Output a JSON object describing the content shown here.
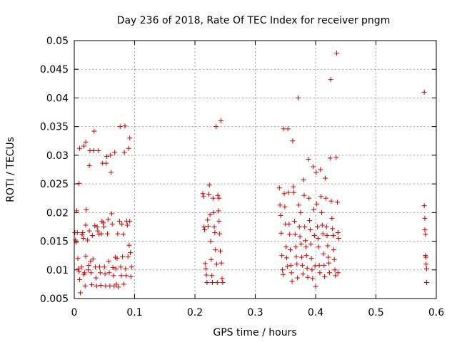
{
  "chart_data": {
    "type": "scatter",
    "title": "Day 236 of 2018, Rate Of TEC Index for receiver pngm",
    "xlabel": "GPS time / hours",
    "ylabel": "ROTI / TECUs",
    "xlim": [
      0,
      0.6
    ],
    "ylim": [
      0.005,
      0.05
    ],
    "xticks": [
      "0",
      "0.1",
      "0.2",
      "0.3",
      "0.4",
      "0.5",
      "0.6"
    ],
    "yticks": [
      "0.005",
      "0.01",
      "0.015",
      "0.02",
      "0.025",
      "0.03",
      "0.035",
      "0.04",
      "0.045",
      "0.05"
    ],
    "grid": true,
    "marker": "+",
    "color": "#cc0000",
    "series": [
      {
        "name": "ROTI",
        "points": [
          [
            0.001,
            0.0165
          ],
          [
            0.002,
            0.0152
          ],
          [
            0.003,
            0.0148
          ],
          [
            0.004,
            0.0203
          ],
          [
            0.005,
            0.0165
          ],
          [
            0.006,
            0.012
          ],
          [
            0.007,
            0.0102
          ],
          [
            0.008,
            0.0097
          ],
          [
            0.009,
            0.0083
          ],
          [
            0.01,
            0.006
          ],
          [
            0.009,
            0.0312
          ],
          [
            0.008,
            0.0251
          ],
          [
            0.012,
            0.0105
          ],
          [
            0.013,
            0.0161
          ],
          [
            0.014,
            0.0165
          ],
          [
            0.015,
            0.0155
          ],
          [
            0.016,
            0.0092
          ],
          [
            0.017,
            0.0095
          ],
          [
            0.018,
            0.0072
          ],
          [
            0.019,
            0.0124
          ],
          [
            0.019,
            0.0178
          ],
          [
            0.02,
            0.0205
          ],
          [
            0.016,
            0.0316
          ],
          [
            0.019,
            0.0323
          ],
          [
            0.022,
            0.0152
          ],
          [
            0.023,
            0.01
          ],
          [
            0.024,
            0.0108
          ],
          [
            0.025,
            0.0168
          ],
          [
            0.025,
            0.0282
          ],
          [
            0.026,
            0.0308
          ],
          [
            0.027,
            0.0115
          ],
          [
            0.028,
            0.0095
          ],
          [
            0.029,
            0.0074
          ],
          [
            0.03,
            0.016
          ],
          [
            0.031,
            0.0119
          ],
          [
            0.032,
            0.0308
          ],
          [
            0.033,
            0.0342
          ],
          [
            0.034,
            0.0177
          ],
          [
            0.035,
            0.0105
          ],
          [
            0.036,
            0.0086
          ],
          [
            0.037,
            0.0072
          ],
          [
            0.038,
            0.0175
          ],
          [
            0.039,
            0.0168
          ],
          [
            0.04,
            0.0308
          ],
          [
            0.041,
            0.0162
          ],
          [
            0.042,
            0.0105
          ],
          [
            0.043,
            0.0095
          ],
          [
            0.044,
            0.0073
          ],
          [
            0.045,
            0.0163
          ],
          [
            0.046,
            0.0185
          ],
          [
            0.047,
            0.0286
          ],
          [
            0.048,
            0.0182
          ],
          [
            0.049,
            0.0175
          ],
          [
            0.05,
            0.0105
          ],
          [
            0.051,
            0.0093
          ],
          [
            0.052,
            0.0072
          ],
          [
            0.053,
            0.0286
          ],
          [
            0.054,
            0.0298
          ],
          [
            0.055,
            0.0163
          ],
          [
            0.056,
            0.0188
          ],
          [
            0.057,
            0.0115
          ],
          [
            0.058,
            0.0095
          ],
          [
            0.059,
            0.0072
          ],
          [
            0.06,
            0.03
          ],
          [
            0.061,
            0.027
          ],
          [
            0.062,
            0.0198
          ],
          [
            0.063,
            0.018
          ],
          [
            0.064,
            0.0104
          ],
          [
            0.065,
            0.009
          ],
          [
            0.066,
            0.0072
          ],
          [
            0.067,
            0.0305
          ],
          [
            0.068,
            0.0122
          ],
          [
            0.069,
            0.0102
          ],
          [
            0.07,
            0.0075
          ],
          [
            0.071,
            0.012
          ],
          [
            0.072,
            0.0163
          ],
          [
            0.073,
            0.007
          ],
          [
            0.075,
            0.0185
          ],
          [
            0.076,
            0.035
          ],
          [
            0.077,
            0.0105
          ],
          [
            0.078,
            0.009
          ],
          [
            0.079,
            0.018
          ],
          [
            0.08,
            0.0123
          ],
          [
            0.081,
            0.0162
          ],
          [
            0.082,
            0.0075
          ],
          [
            0.083,
            0.0305
          ],
          [
            0.084,
            0.0351
          ],
          [
            0.085,
            0.0102
          ],
          [
            0.086,
            0.009
          ],
          [
            0.087,
            0.0185
          ],
          [
            0.088,
            0.0178
          ],
          [
            0.089,
            0.0123
          ],
          [
            0.09,
            0.0312
          ],
          [
            0.091,
            0.0143
          ],
          [
            0.092,
            0.033
          ],
          [
            0.093,
            0.013
          ],
          [
            0.094,
            0.0088
          ],
          [
            0.095,
            0.0105
          ],
          [
            0.092,
            0.0185
          ],
          [
            0.213,
            0.0233
          ],
          [
            0.214,
            0.0228
          ],
          [
            0.215,
            0.0175
          ],
          [
            0.216,
            0.017
          ],
          [
            0.217,
            0.0111
          ],
          [
            0.218,
            0.0102
          ],
          [
            0.219,
            0.0091
          ],
          [
            0.22,
            0.0078
          ],
          [
            0.221,
            0.0187
          ],
          [
            0.222,
            0.0176
          ],
          [
            0.223,
            0.0232
          ],
          [
            0.224,
            0.0248
          ],
          [
            0.225,
            0.0196
          ],
          [
            0.226,
            0.015
          ],
          [
            0.227,
            0.0118
          ],
          [
            0.228,
            0.009
          ],
          [
            0.229,
            0.0078
          ],
          [
            0.23,
            0.0225
          ],
          [
            0.231,
            0.02
          ],
          [
            0.232,
            0.0175
          ],
          [
            0.233,
            0.0165
          ],
          [
            0.234,
            0.0135
          ],
          [
            0.235,
            0.035
          ],
          [
            0.236,
            0.011
          ],
          [
            0.237,
            0.0078
          ],
          [
            0.238,
            0.023
          ],
          [
            0.239,
            0.0203
          ],
          [
            0.24,
            0.0185
          ],
          [
            0.241,
            0.0163
          ],
          [
            0.242,
            0.0133
          ],
          [
            0.243,
            0.036
          ],
          [
            0.244,
            0.0112
          ],
          [
            0.245,
            0.0085
          ],
          [
            0.246,
            0.0078
          ],
          [
            0.24,
            0.0225
          ],
          [
            0.34,
            0.0243
          ],
          [
            0.341,
            0.0213
          ],
          [
            0.342,
            0.0195
          ],
          [
            0.343,
            0.0164
          ],
          [
            0.344,
            0.0125
          ],
          [
            0.345,
            0.01
          ],
          [
            0.346,
            0.0092
          ],
          [
            0.347,
            0.0346
          ],
          [
            0.348,
            0.0233
          ],
          [
            0.349,
            0.021
          ],
          [
            0.35,
            0.018
          ],
          [
            0.351,
            0.014
          ],
          [
            0.352,
            0.0121
          ],
          [
            0.353,
            0.0106
          ],
          [
            0.354,
            0.0346
          ],
          [
            0.355,
            0.0235
          ],
          [
            0.356,
            0.018
          ],
          [
            0.357,
            0.0162
          ],
          [
            0.358,
            0.0135
          ],
          [
            0.359,
            0.0108
          ],
          [
            0.36,
            0.0095
          ],
          [
            0.361,
            0.008
          ],
          [
            0.362,
            0.0325
          ],
          [
            0.363,
            0.0245
          ],
          [
            0.364,
            0.0235
          ],
          [
            0.365,
            0.0185
          ],
          [
            0.366,
            0.0162
          ],
          [
            0.367,
            0.014
          ],
          [
            0.368,
            0.0123
          ],
          [
            0.369,
            0.011
          ],
          [
            0.37,
            0.0086
          ],
          [
            0.371,
            0.04
          ],
          [
            0.372,
            0.0213
          ],
          [
            0.373,
            0.0175
          ],
          [
            0.374,
            0.0158
          ],
          [
            0.375,
            0.02
          ],
          [
            0.376,
            0.0145
          ],
          [
            0.377,
            0.0122
          ],
          [
            0.378,
            0.0108
          ],
          [
            0.379,
            0.0093
          ],
          [
            0.38,
            0.0257
          ],
          [
            0.381,
            0.023
          ],
          [
            0.382,
            0.0175
          ],
          [
            0.383,
            0.0151
          ],
          [
            0.384,
            0.014
          ],
          [
            0.385,
            0.0125
          ],
          [
            0.386,
            0.0103
          ],
          [
            0.387,
            0.0087
          ],
          [
            0.388,
            0.0293
          ],
          [
            0.389,
            0.0225
          ],
          [
            0.39,
            0.0186
          ],
          [
            0.391,
            0.017
          ],
          [
            0.392,
            0.0145
          ],
          [
            0.393,
            0.012
          ],
          [
            0.394,
            0.01
          ],
          [
            0.395,
            0.0085
          ],
          [
            0.396,
            0.028
          ],
          [
            0.397,
            0.0205
          ],
          [
            0.398,
            0.016
          ],
          [
            0.399,
            0.0107
          ],
          [
            0.4,
            0.0071
          ],
          [
            0.401,
            0.027
          ],
          [
            0.402,
            0.0215
          ],
          [
            0.403,
            0.0175
          ],
          [
            0.404,
            0.0155
          ],
          [
            0.405,
            0.014
          ],
          [
            0.406,
            0.0108
          ],
          [
            0.407,
            0.0095
          ],
          [
            0.408,
            0.0275
          ],
          [
            0.409,
            0.0228
          ],
          [
            0.41,
            0.02
          ],
          [
            0.411,
            0.0178
          ],
          [
            0.412,
            0.0163
          ],
          [
            0.413,
            0.0128
          ],
          [
            0.414,
            0.0108
          ],
          [
            0.415,
            0.0088
          ],
          [
            0.416,
            0.026
          ],
          [
            0.417,
            0.0225
          ],
          [
            0.418,
            0.0175
          ],
          [
            0.419,
            0.016
          ],
          [
            0.42,
            0.0142
          ],
          [
            0.421,
            0.0122
          ],
          [
            0.422,
            0.0112
          ],
          [
            0.423,
            0.0095
          ],
          [
            0.424,
            0.0295
          ],
          [
            0.425,
            0.0432
          ],
          [
            0.426,
            0.022
          ],
          [
            0.427,
            0.019
          ],
          [
            0.428,
            0.0172
          ],
          [
            0.429,
            0.016
          ],
          [
            0.43,
            0.0135
          ],
          [
            0.431,
            0.0118
          ],
          [
            0.432,
            0.01
          ],
          [
            0.433,
            0.009
          ],
          [
            0.434,
            0.0296
          ],
          [
            0.435,
            0.0478
          ],
          [
            0.436,
            0.0218
          ],
          [
            0.437,
            0.0165
          ],
          [
            0.438,
            0.0155
          ],
          [
            0.437,
            0.0095
          ],
          [
            0.58,
            0.041
          ],
          [
            0.58,
            0.0212
          ],
          [
            0.581,
            0.019
          ],
          [
            0.581,
            0.017
          ],
          [
            0.582,
            0.0162
          ],
          [
            0.582,
            0.0125
          ],
          [
            0.583,
            0.0122
          ],
          [
            0.583,
            0.011
          ],
          [
            0.584,
            0.0102
          ],
          [
            0.584,
            0.0078
          ]
        ]
      }
    ]
  }
}
